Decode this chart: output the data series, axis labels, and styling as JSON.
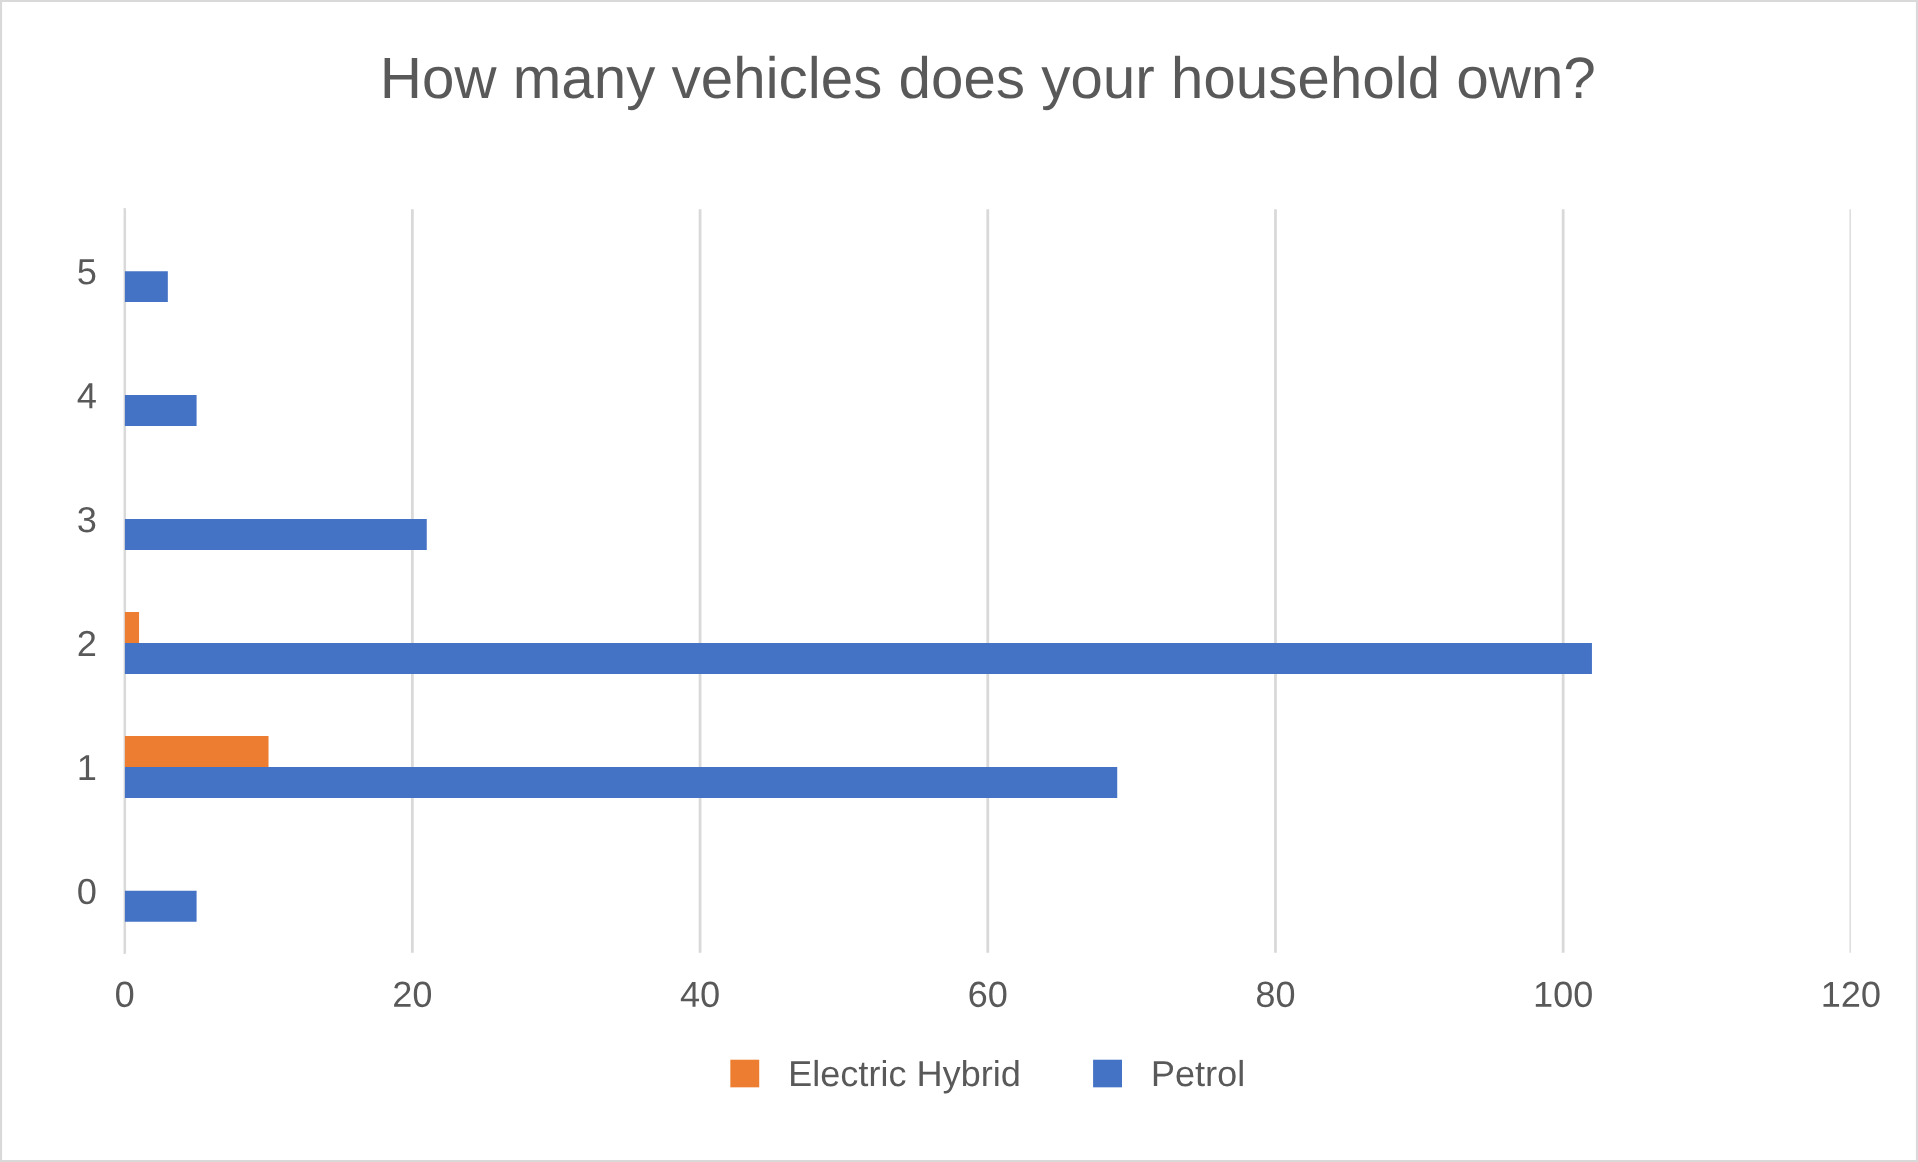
{
  "chart_data": {
    "type": "bar",
    "orientation": "horizontal",
    "title": "How many vehicles does your household own?",
    "categories": [
      "5",
      "4",
      "3",
      "2",
      "1",
      "0"
    ],
    "series": [
      {
        "name": "Electric Hybrid",
        "color": "#ed7d31",
        "values": [
          0,
          0,
          0,
          1,
          10,
          0
        ]
      },
      {
        "name": "Petrol",
        "color": "#4472c4",
        "values": [
          3,
          5,
          21,
          102,
          69,
          5
        ]
      }
    ],
    "xlim": [
      0,
      120
    ],
    "xticks": [
      0,
      20,
      40,
      60,
      80,
      100,
      120
    ],
    "grid": "x",
    "legend": "bottom"
  }
}
